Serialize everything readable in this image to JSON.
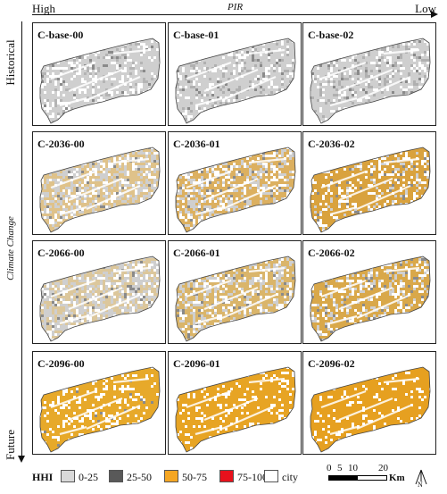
{
  "axes": {
    "pir_high": "High",
    "pir_title": "PIR",
    "pir_low": "Low",
    "time_start": "Historical",
    "climate_title": "Climate Change",
    "time_end": "Future"
  },
  "panels": [
    {
      "label": "C-base-00",
      "fill": 0.08,
      "tint": "#b4b4b4"
    },
    {
      "label": "C-base-01",
      "fill": 0.1,
      "tint": "#b0b0b0"
    },
    {
      "label": "C-base-02",
      "fill": 0.14,
      "tint": "#b0b0b0"
    },
    {
      "label": "C-2036-00",
      "fill": 0.45,
      "tint": "#dfc28a"
    },
    {
      "label": "C-2036-01",
      "fill": 0.55,
      "tint": "#dcb060"
    },
    {
      "label": "C-2036-02",
      "fill": 0.7,
      "tint": "#d9a23e"
    },
    {
      "label": "C-2066-00",
      "fill": 0.4,
      "tint": "#dcc79c"
    },
    {
      "label": "C-2066-01",
      "fill": 0.55,
      "tint": "#dab56a"
    },
    {
      "label": "C-2066-02",
      "fill": 0.62,
      "tint": "#d9a84a"
    },
    {
      "label": "C-2096-00",
      "fill": 0.8,
      "tint": "#e7a92a"
    },
    {
      "label": "C-2096-01",
      "fill": 0.85,
      "tint": "#e7a424"
    },
    {
      "label": "C-2096-02",
      "fill": 0.88,
      "tint": "#e6a020"
    }
  ],
  "legend": {
    "title": "HHI",
    "items": [
      {
        "label": "0-25",
        "color": "#d9d9d9"
      },
      {
        "label": "25-50",
        "color": "#595959"
      },
      {
        "label": "50-75",
        "color": "#f5a623"
      },
      {
        "label": "75-100",
        "color": "#e8111c"
      },
      {
        "label": "city",
        "color": "#ffffff"
      }
    ]
  },
  "scalebar": {
    "ticks": [
      "0",
      "5",
      "10",
      "20"
    ],
    "unit": "Km"
  },
  "north_label": "N"
}
